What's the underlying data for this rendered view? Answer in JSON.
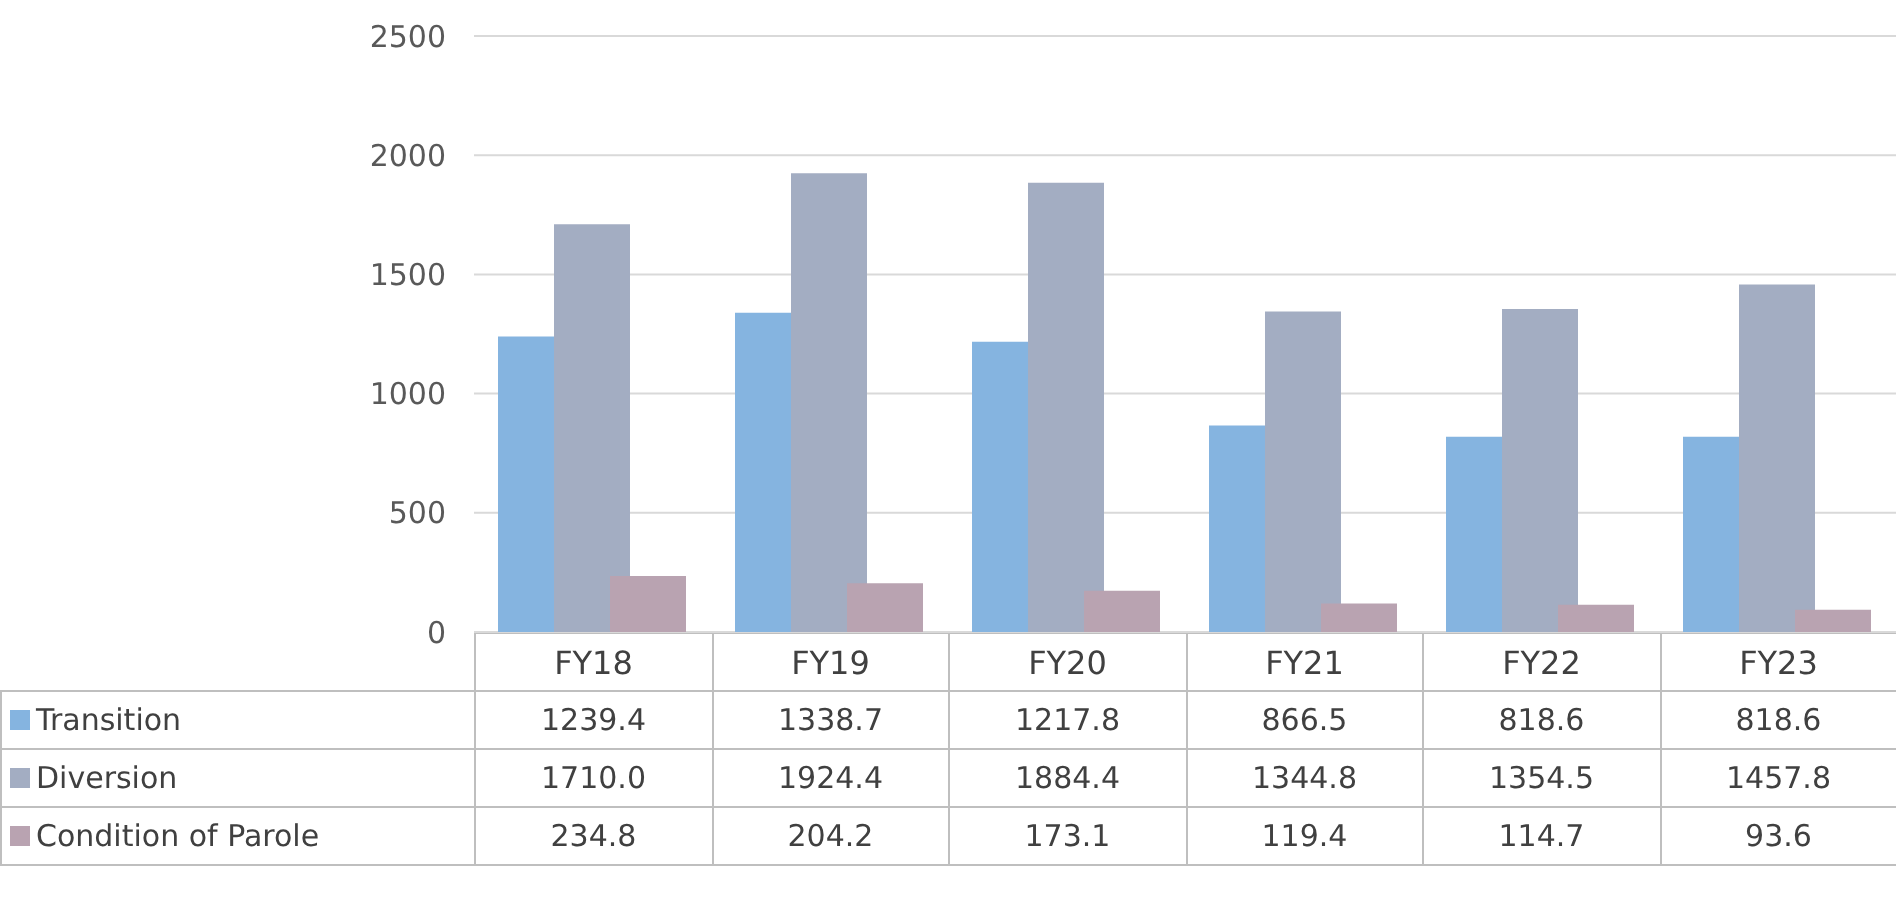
{
  "chart_data": {
    "type": "bar",
    "categories": [
      "FY18",
      "FY19",
      "FY20",
      "FY21",
      "FY22",
      "FY23"
    ],
    "series": [
      {
        "name": "Transition",
        "color": "#85b4e0",
        "values": [
          1239.4,
          1338.7,
          1217.8,
          866.5,
          818.6,
          818.6
        ],
        "value_labels": [
          "1239.4",
          "1338.7",
          "1217.8",
          "866.5",
          "818.6",
          "818.6"
        ]
      },
      {
        "name": "Diversion",
        "color": "#a3adc2",
        "values": [
          1710.0,
          1924.4,
          1884.4,
          1344.8,
          1354.5,
          1457.8
        ],
        "value_labels": [
          "1710.0",
          "1924.4",
          "1884.4",
          "1344.8",
          "1354.5",
          "1457.8"
        ]
      },
      {
        "name": "Condition of Parole",
        "color": "#b9a3b1",
        "values": [
          234.8,
          204.2,
          173.1,
          119.4,
          114.7,
          93.6
        ],
        "value_labels": [
          "234.8",
          "204.2",
          "173.1",
          "119.4",
          "114.7",
          "93.6"
        ]
      }
    ],
    "ylim": [
      0,
      2500
    ],
    "yticks": [
      0,
      500,
      1000,
      1500,
      2000,
      2500
    ],
    "grid": "y",
    "legend": "bottom",
    "data_labels": true
  }
}
